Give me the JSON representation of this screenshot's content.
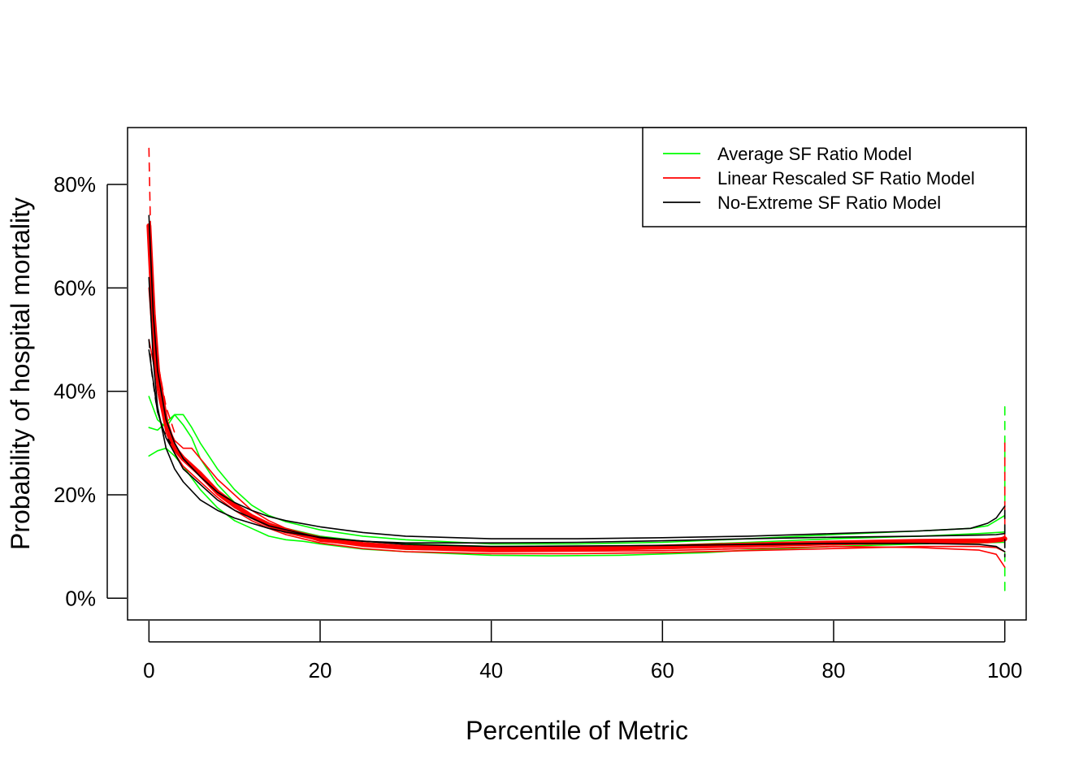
{
  "chart_data": {
    "type": "line",
    "title": "",
    "xlabel": "Percentile of Metric",
    "ylabel": "Probability of hospital mortality",
    "xlim": [
      -2.5,
      102.5
    ],
    "ylim": [
      -0.042,
      0.91
    ],
    "x_ticks": [
      0,
      20,
      40,
      60,
      80,
      100
    ],
    "y_ticks": [
      0,
      0.2,
      0.4,
      0.6,
      0.8
    ],
    "y_tick_labels": [
      "0%",
      "20%",
      "40%",
      "60%",
      "80%"
    ],
    "x_tick_labels": [
      "0",
      "20",
      "40",
      "60",
      "80",
      "100"
    ],
    "grid": false,
    "legend": {
      "position": "top-right",
      "entries": [
        {
          "label": "Average SF Ratio Model",
          "color": "#00ff00"
        },
        {
          "label": "Linear Rescaled SF Ratio Model",
          "color": "#ff0000"
        },
        {
          "label": "No-Extreme SF Ratio Model",
          "color": "#000000"
        }
      ]
    },
    "series": [
      {
        "legend": 0,
        "style": "solid",
        "width": 1.6,
        "x": [
          0,
          1,
          2,
          3,
          4,
          5,
          6,
          8,
          10,
          12,
          14,
          16,
          20,
          25,
          30,
          40,
          50,
          60,
          70,
          80,
          90,
          97,
          99,
          100
        ],
        "y": [
          0.33,
          0.325,
          0.34,
          0.355,
          0.335,
          0.31,
          0.27,
          0.22,
          0.185,
          0.16,
          0.145,
          0.135,
          0.12,
          0.11,
          0.105,
          0.1,
          0.1,
          0.102,
          0.108,
          0.115,
          0.12,
          0.125,
          0.127,
          0.128
        ]
      },
      {
        "legend": 0,
        "style": "solid",
        "width": 1.6,
        "x": [
          0,
          1,
          2,
          3,
          4,
          5,
          6,
          8,
          10,
          12,
          14,
          16,
          20,
          25,
          30,
          40,
          50,
          60,
          70,
          80,
          90,
          96,
          98,
          99,
          100
        ],
        "y": [
          0.39,
          0.345,
          0.33,
          0.355,
          0.355,
          0.33,
          0.3,
          0.25,
          0.21,
          0.18,
          0.16,
          0.148,
          0.132,
          0.12,
          0.113,
          0.105,
          0.105,
          0.108,
          0.115,
          0.123,
          0.13,
          0.135,
          0.14,
          0.15,
          0.16
        ]
      },
      {
        "legend": 0,
        "style": "solid",
        "width": 1.6,
        "x": [
          0,
          1,
          2,
          3,
          4,
          6,
          8,
          10,
          12,
          14,
          16,
          18,
          20,
          25,
          30,
          40,
          47,
          55,
          65,
          70,
          80,
          90,
          100
        ],
        "y": [
          0.275,
          0.285,
          0.29,
          0.275,
          0.255,
          0.21,
          0.175,
          0.15,
          0.135,
          0.12,
          0.113,
          0.11,
          0.105,
          0.095,
          0.09,
          0.083,
          0.082,
          0.083,
          0.088,
          0.093,
          0.1,
          0.105,
          0.108
        ]
      },
      {
        "legend": 0,
        "style": "dashed",
        "width": 1.6,
        "x": [
          100,
          100,
          100,
          100
        ],
        "y": [
          0.37,
          0.2,
          0.05,
          0.01
        ]
      },
      {
        "legend": 1,
        "style": "solid",
        "width": 1.6,
        "x": [
          0,
          0.5,
          1,
          2,
          3,
          4,
          5,
          6,
          8,
          10,
          12,
          14,
          16,
          20,
          25,
          30,
          40,
          50,
          60,
          70,
          80,
          90,
          97,
          99,
          100
        ],
        "y": [
          0.7,
          0.55,
          0.43,
          0.34,
          0.305,
          0.29,
          0.29,
          0.27,
          0.23,
          0.2,
          0.17,
          0.15,
          0.135,
          0.117,
          0.105,
          0.098,
          0.093,
          0.093,
          0.096,
          0.1,
          0.104,
          0.107,
          0.108,
          0.11,
          0.12
        ]
      },
      {
        "legend": 1,
        "style": "solid",
        "width": 1.6,
        "x": [
          0,
          0.5,
          1,
          2,
          3,
          4,
          6,
          8,
          10,
          12,
          14,
          16,
          20,
          25,
          30,
          40,
          50,
          60,
          70,
          80,
          90,
          97,
          99,
          100
        ],
        "y": [
          0.6,
          0.48,
          0.4,
          0.32,
          0.28,
          0.255,
          0.225,
          0.195,
          0.17,
          0.15,
          0.135,
          0.123,
          0.107,
          0.096,
          0.09,
          0.086,
          0.086,
          0.088,
          0.092,
          0.096,
          0.1,
          0.1,
          0.098,
          0.09
        ]
      },
      {
        "legend": 1,
        "style": "solid",
        "width": 1.6,
        "x": [
          0,
          2,
          4,
          6,
          8,
          10,
          14,
          20,
          30,
          40,
          60,
          80,
          90,
          97,
          99,
          100
        ],
        "y": [
          0.5,
          0.33,
          0.27,
          0.235,
          0.2,
          0.175,
          0.14,
          0.11,
          0.095,
          0.09,
          0.092,
          0.1,
          0.098,
          0.093,
          0.085,
          0.06
        ]
      },
      {
        "legend": 1,
        "style": "solid",
        "width": 6,
        "x": [
          0,
          0.5,
          1,
          2,
          3,
          4,
          5,
          6,
          8,
          10,
          12,
          14,
          16,
          20,
          25,
          30,
          40,
          50,
          60,
          70,
          80,
          90,
          98,
          99.5,
          100
        ],
        "y": [
          0.72,
          0.55,
          0.44,
          0.34,
          0.29,
          0.27,
          0.255,
          0.24,
          0.205,
          0.18,
          0.158,
          0.142,
          0.13,
          0.115,
          0.104,
          0.098,
          0.095,
          0.096,
          0.099,
          0.103,
          0.107,
          0.11,
          0.111,
          0.113,
          0.115
        ]
      },
      {
        "legend": 1,
        "style": "dashed",
        "width": 1.6,
        "x": [
          0,
          0.2,
          0.6,
          1.2,
          2,
          3
        ],
        "y": [
          0.87,
          0.7,
          0.55,
          0.44,
          0.37,
          0.32
        ]
      },
      {
        "legend": 1,
        "style": "dashed",
        "width": 1.6,
        "x": [
          100,
          100,
          100
        ],
        "y": [
          0.3,
          0.2,
          0.12
        ]
      },
      {
        "legend": 2,
        "style": "solid",
        "width": 1.6,
        "x": [
          0,
          0.5,
          1,
          2,
          3,
          4,
          6,
          8,
          10,
          12,
          14,
          16,
          20,
          25,
          30,
          40,
          50,
          60,
          70,
          80,
          90,
          96,
          98,
          99,
          100
        ],
        "y": [
          0.74,
          0.55,
          0.44,
          0.345,
          0.3,
          0.27,
          0.235,
          0.205,
          0.185,
          0.17,
          0.158,
          0.15,
          0.138,
          0.127,
          0.12,
          0.115,
          0.115,
          0.117,
          0.12,
          0.125,
          0.13,
          0.135,
          0.145,
          0.155,
          0.178
        ]
      },
      {
        "legend": 2,
        "style": "solid",
        "width": 1.6,
        "x": [
          0,
          0.5,
          1,
          2,
          3,
          4,
          6,
          8,
          10,
          12,
          14,
          16,
          20,
          25,
          30,
          40,
          50,
          60,
          70,
          80,
          90,
          97,
          99,
          100
        ],
        "y": [
          0.62,
          0.46,
          0.37,
          0.29,
          0.25,
          0.225,
          0.19,
          0.17,
          0.155,
          0.145,
          0.135,
          0.128,
          0.118,
          0.11,
          0.107,
          0.107,
          0.108,
          0.111,
          0.115,
          0.118,
          0.12,
          0.122,
          0.123,
          0.125
        ]
      },
      {
        "legend": 2,
        "style": "solid",
        "width": 1.6,
        "x": [
          0,
          1,
          2,
          4,
          6,
          8,
          10,
          14,
          20,
          30,
          40,
          60,
          80,
          90,
          97,
          99,
          100
        ],
        "y": [
          0.48,
          0.36,
          0.31,
          0.25,
          0.22,
          0.19,
          0.17,
          0.14,
          0.117,
          0.104,
          0.1,
          0.102,
          0.106,
          0.106,
          0.104,
          0.1,
          0.09
        ]
      },
      {
        "legend": 2,
        "style": "dashed",
        "width": 1.6,
        "x": [
          0,
          0.3,
          0.8,
          1.5,
          2.5
        ],
        "y": [
          0.5,
          0.44,
          0.38,
          0.33,
          0.3
        ]
      },
      {
        "legend": 2,
        "style": "dashed",
        "width": 1.6,
        "x": [
          100,
          100,
          100
        ],
        "y": [
          0.17,
          0.12,
          0.08
        ]
      }
    ]
  }
}
